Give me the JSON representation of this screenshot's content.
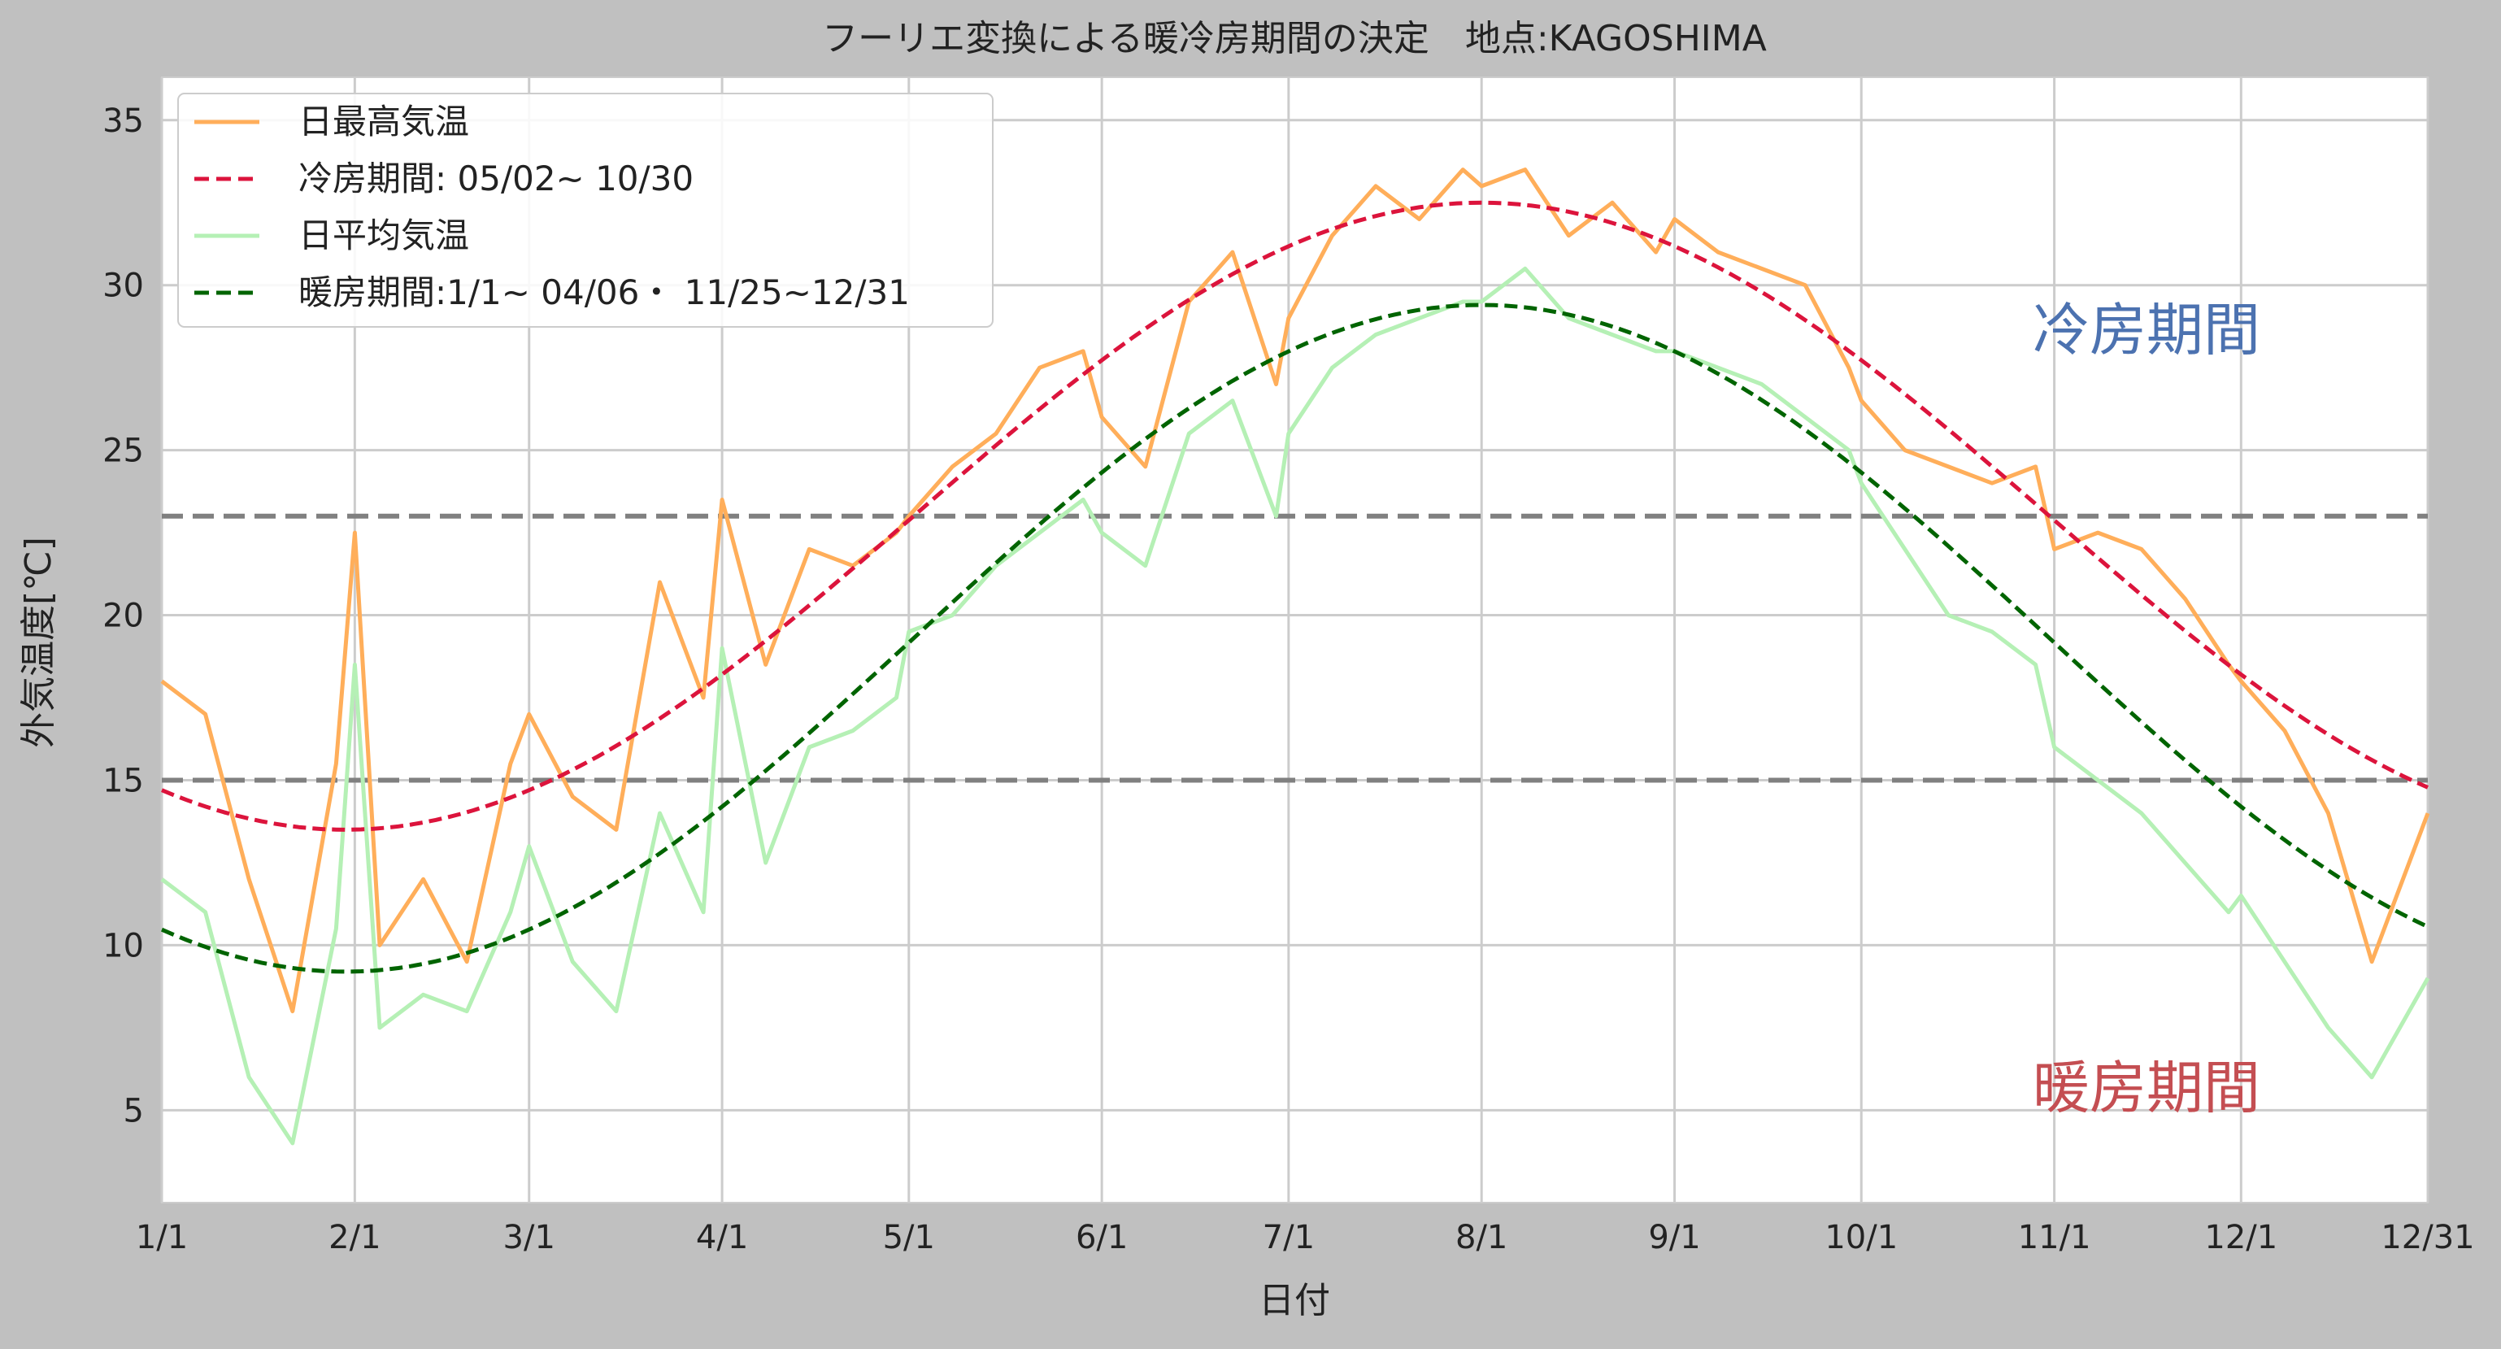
{
  "chart_data": {
    "type": "line",
    "title": "フーリエ変換による暖冷房期間の決定　地点:KAGOSHIMA",
    "xlabel": "日付",
    "ylabel": "外気温度[℃]",
    "xlim": [
      1,
      365
    ],
    "ylim": [
      2.2,
      36.3
    ],
    "x_ticks": [
      {
        "day": 1,
        "label": "1/1"
      },
      {
        "day": 32,
        "label": "2/1"
      },
      {
        "day": 60,
        "label": "3/1"
      },
      {
        "day": 91,
        "label": "4/1"
      },
      {
        "day": 121,
        "label": "5/1"
      },
      {
        "day": 152,
        "label": "6/1"
      },
      {
        "day": 182,
        "label": "7/1"
      },
      {
        "day": 213,
        "label": "8/1"
      },
      {
        "day": 244,
        "label": "9/1"
      },
      {
        "day": 274,
        "label": "10/1"
      },
      {
        "day": 305,
        "label": "11/1"
      },
      {
        "day": 335,
        "label": "12/1"
      },
      {
        "day": 365,
        "label": "12/31"
      }
    ],
    "y_ticks": [
      5,
      10,
      15,
      20,
      25,
      30,
      35
    ],
    "grid": true,
    "legend_position": "top-left",
    "reference_lines": [
      {
        "y": 23,
        "color": "#808080",
        "style": "dashed"
      },
      {
        "y": 15,
        "color": "#808080",
        "style": "dashed"
      }
    ],
    "series": [
      {
        "name": "日最高気温",
        "color": "#ffae5a",
        "style": "solid",
        "x": [
          1,
          8,
          15,
          22,
          29,
          32,
          36,
          43,
          50,
          57,
          60,
          67,
          74,
          81,
          88,
          91,
          98,
          105,
          112,
          119,
          121,
          128,
          135,
          142,
          149,
          152,
          159,
          166,
          173,
          180,
          182,
          189,
          196,
          203,
          210,
          213,
          220,
          227,
          234,
          241,
          244,
          251,
          258,
          265,
          272,
          274,
          281,
          288,
          295,
          302,
          305,
          312,
          319,
          326,
          333,
          335,
          342,
          349,
          356,
          365
        ],
        "y": [
          18.0,
          17.0,
          12.0,
          8.0,
          15.5,
          22.5,
          10.0,
          12.0,
          9.5,
          15.5,
          17.0,
          14.5,
          13.5,
          21.0,
          17.5,
          23.5,
          18.5,
          22.0,
          21.5,
          22.5,
          23.0,
          24.5,
          25.5,
          27.5,
          28.0,
          26.0,
          24.5,
          29.5,
          31.0,
          27.0,
          29.0,
          31.5,
          33.0,
          32.0,
          33.5,
          33.0,
          33.5,
          31.5,
          32.5,
          31.0,
          32.0,
          31.0,
          30.5,
          30.0,
          27.5,
          26.5,
          25.0,
          24.5,
          24.0,
          24.5,
          22.0,
          22.5,
          22.0,
          20.5,
          18.5,
          18.0,
          16.5,
          14.0,
          9.5,
          14.0
        ]
      },
      {
        "name": "日平均気温",
        "color": "#b5f0b5",
        "style": "solid",
        "x": [
          1,
          8,
          15,
          22,
          29,
          32,
          36,
          43,
          50,
          57,
          60,
          67,
          74,
          81,
          88,
          91,
          98,
          105,
          112,
          119,
          121,
          128,
          135,
          142,
          149,
          152,
          159,
          166,
          173,
          180,
          182,
          189,
          196,
          203,
          210,
          213,
          220,
          227,
          234,
          241,
          244,
          251,
          258,
          265,
          272,
          274,
          281,
          288,
          295,
          302,
          305,
          312,
          319,
          326,
          333,
          335,
          342,
          349,
          356,
          365
        ],
        "y": [
          12.0,
          11.0,
          6.0,
          4.0,
          10.5,
          18.5,
          7.5,
          8.5,
          8.0,
          11.0,
          13.0,
          9.5,
          8.0,
          14.0,
          11.0,
          19.0,
          12.5,
          16.0,
          16.5,
          17.5,
          19.5,
          20.0,
          21.5,
          22.5,
          23.5,
          22.5,
          21.5,
          25.5,
          26.5,
          23.0,
          25.5,
          27.5,
          28.5,
          29.0,
          29.5,
          29.5,
          30.5,
          29.0,
          28.5,
          28.0,
          28.0,
          27.5,
          27.0,
          26.0,
          25.0,
          24.0,
          22.0,
          20.0,
          19.5,
          18.5,
          16.0,
          15.0,
          14.0,
          12.5,
          11.0,
          11.5,
          9.5,
          7.5,
          6.0,
          9.0
        ]
      },
      {
        "name": "冷房期間: 05/02~ 10/30",
        "color": "#dc143c",
        "style": "dashed",
        "fourier": {
          "mean": 23.0,
          "amplitude": 9.5,
          "peak_day": 213
        }
      },
      {
        "name": "暖房期間:1/1~ 04/06・ 11/25~12/31",
        "color": "#006400",
        "style": "dashed",
        "fourier": {
          "mean": 19.3,
          "amplitude": 10.1,
          "peak_day": 213
        }
      }
    ],
    "annotations": [
      {
        "text": "冷房期間",
        "color": "#4c72b0"
      },
      {
        "text": "暖房期間",
        "color": "#c44e52"
      }
    ]
  }
}
